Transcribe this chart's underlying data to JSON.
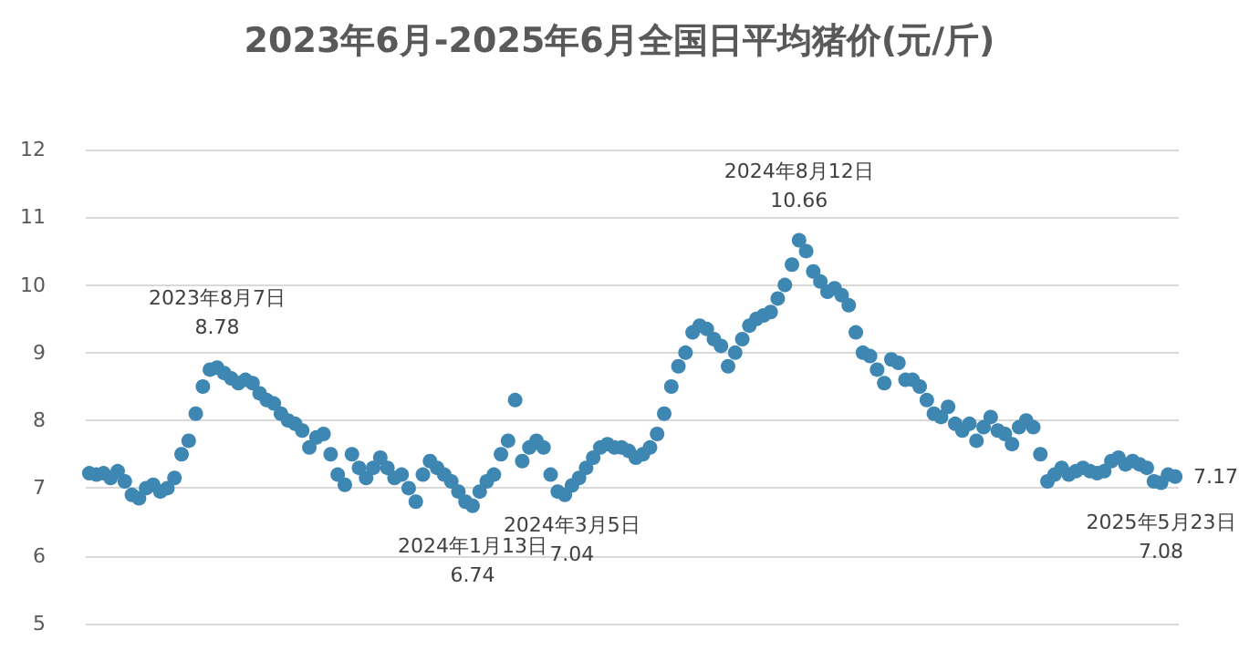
{
  "chart_data": {
    "type": "scatter",
    "title": "2023年6月-2025年6月全国日平均猪价(元/斤)",
    "categories": [
      null,
      null,
      null,
      null,
      null,
      null,
      null,
      null,
      null,
      null,
      null,
      null,
      null,
      null,
      null,
      null,
      null,
      null,
      null,
      null,
      null,
      null,
      null,
      null,
      null,
      null,
      null,
      null,
      null,
      null,
      null,
      null,
      null,
      null,
      null,
      null,
      null,
      null,
      null,
      null,
      null,
      null,
      null,
      null,
      null,
      null,
      null,
      null,
      null,
      null,
      null,
      null,
      null,
      null,
      null,
      null,
      null,
      null,
      null,
      null,
      null,
      null,
      null,
      null,
      null,
      null,
      null,
      null,
      null,
      null,
      null,
      null,
      null,
      null,
      null,
      null,
      null,
      null,
      null,
      null,
      null,
      null,
      null,
      null,
      null,
      null,
      null,
      null,
      null,
      null,
      null,
      null,
      null,
      null,
      null,
      null,
      null,
      null,
      null,
      null,
      null,
      null,
      null,
      null,
      null,
      null,
      null,
      null,
      null,
      null,
      null,
      null,
      null,
      null,
      null,
      null,
      null,
      null,
      null,
      null,
      null,
      null,
      null,
      null,
      null,
      null,
      null,
      null,
      null,
      null,
      null,
      null,
      null,
      null,
      null,
      null,
      null,
      null,
      null,
      null,
      null,
      null,
      null,
      null,
      null,
      null,
      null,
      null,
      null,
      null,
      null,
      null,
      null,
      null
    ],
    "series": [
      {
        "color": "#3f87b3",
        "values": [
          7.22,
          7.2,
          7.22,
          7.15,
          7.25,
          7.1,
          6.9,
          6.85,
          7.0,
          7.05,
          6.95,
          7.0,
          7.15,
          7.5,
          7.7,
          8.1,
          8.5,
          8.75,
          8.78,
          8.7,
          8.62,
          8.55,
          8.6,
          8.55,
          8.4,
          8.3,
          8.25,
          8.1,
          8.0,
          7.95,
          7.85,
          7.6,
          7.75,
          7.8,
          7.5,
          7.2,
          7.05,
          7.5,
          7.3,
          7.15,
          7.3,
          7.45,
          7.3,
          7.15,
          7.2,
          7.0,
          6.8,
          7.2,
          7.4,
          7.3,
          7.2,
          7.1,
          6.95,
          6.8,
          6.74,
          6.95,
          7.1,
          7.2,
          7.5,
          7.7,
          8.3,
          7.4,
          7.6,
          7.7,
          7.6,
          7.2,
          6.95,
          6.9,
          7.04,
          7.15,
          7.3,
          7.45,
          7.6,
          7.65,
          7.6,
          7.6,
          7.55,
          7.45,
          7.5,
          7.6,
          7.8,
          8.1,
          8.5,
          8.8,
          9.0,
          9.3,
          9.4,
          9.35,
          9.2,
          9.1,
          8.8,
          9.0,
          9.2,
          9.4,
          9.5,
          9.55,
          9.6,
          9.8,
          10.0,
          10.3,
          10.66,
          10.5,
          10.2,
          10.05,
          9.9,
          9.95,
          9.85,
          9.7,
          9.3,
          9.0,
          8.95,
          8.75,
          8.55,
          8.9,
          8.85,
          8.6,
          8.6,
          8.5,
          8.3,
          8.1,
          8.05,
          8.2,
          7.95,
          7.85,
          7.95,
          7.7,
          7.9,
          8.05,
          7.85,
          7.8,
          7.65,
          7.9,
          8.0,
          7.9,
          7.5,
          7.1,
          7.2,
          7.3,
          7.2,
          7.25,
          7.3,
          7.25,
          7.22,
          7.25,
          7.4,
          7.45,
          7.35,
          7.4,
          7.35,
          7.3,
          7.1,
          7.08,
          7.2,
          7.17
        ],
        "value_labels": [
          null,
          null,
          null,
          null,
          null,
          null,
          null,
          null,
          null,
          null,
          null,
          null,
          null,
          null,
          null,
          null,
          null,
          null,
          "8.78",
          null,
          null,
          null,
          null,
          null,
          null,
          null,
          null,
          null,
          null,
          null,
          null,
          null,
          null,
          null,
          null,
          null,
          null,
          null,
          null,
          null,
          null,
          null,
          null,
          null,
          null,
          null,
          null,
          null,
          null,
          null,
          null,
          null,
          null,
          null,
          "6.74",
          null,
          null,
          null,
          null,
          null,
          null,
          null,
          null,
          null,
          null,
          null,
          null,
          null,
          "7.04",
          null,
          null,
          null,
          null,
          null,
          null,
          null,
          null,
          null,
          null,
          null,
          null,
          null,
          null,
          null,
          null,
          null,
          null,
          null,
          null,
          null,
          null,
          null,
          null,
          null,
          null,
          null,
          null,
          null,
          null,
          null,
          "10.66",
          null,
          null,
          null,
          null,
          null,
          null,
          null,
          null,
          null,
          null,
          null,
          null,
          null,
          null,
          null,
          null,
          null,
          null,
          null,
          null,
          null,
          null,
          null,
          null,
          null,
          null,
          null,
          null,
          null,
          null,
          null,
          null,
          null,
          null,
          null,
          null,
          null,
          null,
          null,
          null,
          null,
          null,
          null,
          null,
          null,
          null,
          null,
          null,
          null,
          null,
          "7.08",
          null,
          "7.17"
        ]
      }
    ],
    "annotations": [
      {
        "text": "2023年8月7日",
        "y": 8.78
      },
      {
        "text": "2024年1月13日",
        "y": 6.74
      },
      {
        "text": "2024年3月5日",
        "y": 7.04
      },
      {
        "text": "2024年8月12日",
        "y": 10.66
      },
      {
        "text": "2025年5月23日",
        "y": 7.08
      }
    ],
    "ylim": [
      5,
      12
    ],
    "yticks": [
      5,
      6,
      7,
      8,
      9,
      10,
      11,
      12
    ],
    "grid": "y",
    "tick_labels": "y",
    "marker": "circle"
  }
}
